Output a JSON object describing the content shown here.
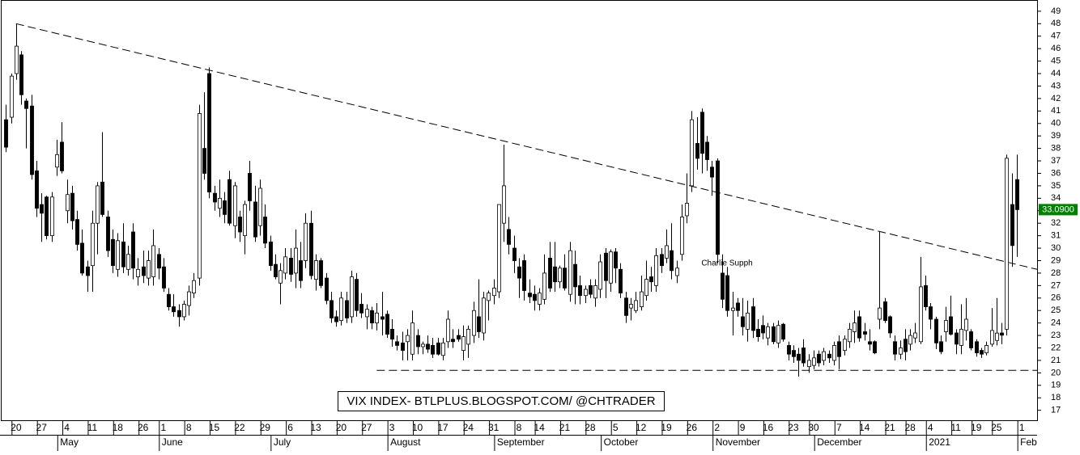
{
  "chart_data": {
    "type": "candlestick",
    "title": "VIX INDEX- BTLPLUS.BLOGSPOT.COM/ @CHTRADER",
    "annotation": "Charlie Supph",
    "last_price": {
      "value": 33.09,
      "label": "33.0900"
    },
    "up_color": "#ffffff",
    "down_color": "#000000",
    "annotation_color": "#e00000",
    "price_box_color": "#008000",
    "ylim": [
      16.2,
      49.9
    ],
    "yticks": [
      17,
      18,
      19,
      20,
      21,
      22,
      23,
      24,
      25,
      26,
      27,
      28,
      29,
      30,
      31,
      32,
      33,
      34,
      35,
      36,
      37,
      38,
      39,
      40,
      41,
      42,
      43,
      44,
      45,
      46,
      47,
      48,
      49
    ],
    "xlim": [
      -1,
      203
    ],
    "xticks": [
      {
        "value": 2,
        "label": "20"
      },
      {
        "value": 7,
        "label": "27"
      },
      {
        "value": 12,
        "label": "4"
      },
      {
        "value": 17,
        "label": "11"
      },
      {
        "value": 22,
        "label": "18"
      },
      {
        "value": 27,
        "label": "26"
      },
      {
        "value": 31,
        "label": "1"
      },
      {
        "value": 36,
        "label": "8"
      },
      {
        "value": 41,
        "label": "15"
      },
      {
        "value": 46,
        "label": "22"
      },
      {
        "value": 51,
        "label": "29"
      },
      {
        "value": 56,
        "label": "6"
      },
      {
        "value": 61,
        "label": "13"
      },
      {
        "value": 66,
        "label": "20"
      },
      {
        "value": 71,
        "label": "27"
      },
      {
        "value": 76,
        "label": "3"
      },
      {
        "value": 81,
        "label": "10"
      },
      {
        "value": 86,
        "label": "17"
      },
      {
        "value": 91,
        "label": "24"
      },
      {
        "value": 96,
        "label": "31"
      },
      {
        "value": 101,
        "label": "8"
      },
      {
        "value": 105,
        "label": "14"
      },
      {
        "value": 110,
        "label": "21"
      },
      {
        "value": 115,
        "label": "28"
      },
      {
        "value": 120,
        "label": "5"
      },
      {
        "value": 125,
        "label": "12"
      },
      {
        "value": 130,
        "label": "19"
      },
      {
        "value": 135,
        "label": "26"
      },
      {
        "value": 140,
        "label": "2"
      },
      {
        "value": 145,
        "label": "9"
      },
      {
        "value": 150,
        "label": "16"
      },
      {
        "value": 155,
        "label": "23"
      },
      {
        "value": 159,
        "label": "30"
      },
      {
        "value": 164,
        "label": "7"
      },
      {
        "value": 169,
        "label": "14"
      },
      {
        "value": 174,
        "label": "21"
      },
      {
        "value": 178,
        "label": "28"
      },
      {
        "value": 182,
        "label": "4"
      },
      {
        "value": 187,
        "label": "11"
      },
      {
        "value": 191,
        "label": "19"
      },
      {
        "value": 195,
        "label": "25"
      },
      {
        "value": 200,
        "label": "1"
      }
    ],
    "month_ticks": [
      {
        "value": 11,
        "label": "May"
      },
      {
        "value": 31,
        "label": "June"
      },
      {
        "value": 53,
        "label": "July"
      },
      {
        "value": 76,
        "label": "August"
      },
      {
        "value": 97,
        "label": "September"
      },
      {
        "value": 118,
        "label": "October"
      },
      {
        "value": 140,
        "label": "November"
      },
      {
        "value": 160,
        "label": "December"
      },
      {
        "value": 182,
        "label": "2021"
      },
      {
        "value": 200,
        "label": "Feb"
      }
    ],
    "trendlines": [
      {
        "x": [
          2,
          203
        ],
        "y": [
          48,
          28.3
        ]
      },
      {
        "x": [
          73,
          203
        ],
        "y": [
          20.2,
          20.2
        ]
      }
    ],
    "ohlc": [
      [
        40.3,
        41.5,
        37.7,
        38.1
      ],
      [
        40.5,
        44,
        40,
        43.8
      ],
      [
        44,
        48,
        43.5,
        46.2
      ],
      [
        45.5,
        45.8,
        41.5,
        42.3
      ],
      [
        41.8,
        42,
        38,
        41.2
      ],
      [
        41.4,
        42.3,
        35.5,
        35.9
      ],
      [
        36.2,
        37,
        32.5,
        33.2
      ],
      [
        33.5,
        34.4,
        30.5,
        32.8
      ],
      [
        34.1,
        34.2,
        30.7,
        31
      ],
      [
        31,
        34.5,
        30.5,
        34.1
      ],
      [
        36.5,
        38.7,
        35.8,
        37.5
      ],
      [
        38.5,
        40.1,
        36,
        36.2
      ],
      [
        33,
        35.5,
        32,
        34.3
      ],
      [
        34.4,
        35,
        31.5,
        32.2
      ],
      [
        32.3,
        33,
        29.8,
        30.3
      ],
      [
        30.4,
        31.5,
        27.8,
        28
      ],
      [
        28.5,
        29,
        26.5,
        27.8
      ],
      [
        28.6,
        33,
        26.5,
        32
      ],
      [
        32,
        35.3,
        29.5,
        35
      ],
      [
        35.3,
        39.3,
        32.5,
        32.7
      ],
      [
        32.5,
        33,
        29.3,
        29.8
      ],
      [
        30.7,
        31.5,
        28,
        28.6
      ],
      [
        28.3,
        31.2,
        27.7,
        30.6
      ],
      [
        30.5,
        32,
        28,
        28.5
      ],
      [
        28.3,
        30.2,
        27.8,
        29.5
      ],
      [
        31.3,
        32,
        27.5,
        28.4
      ],
      [
        27.7,
        29.2,
        27,
        28.3
      ],
      [
        28.5,
        29.8,
        27.2,
        27.8
      ],
      [
        27.6,
        29.8,
        27,
        29
      ],
      [
        27.7,
        31.5,
        27,
        30.2
      ],
      [
        29.5,
        30,
        27.5,
        28.4
      ],
      [
        28.5,
        29.2,
        26.5,
        26.8
      ],
      [
        26.3,
        26.8,
        25,
        25.3
      ],
      [
        25.3,
        26.3,
        24.5,
        24.9
      ],
      [
        25,
        25.5,
        23.7,
        24.5
      ],
      [
        24.5,
        25.8,
        24.2,
        25.5
      ],
      [
        25.4,
        27,
        24.6,
        26.5
      ],
      [
        26.4,
        28,
        26,
        27.4
      ],
      [
        27.6,
        41.5,
        27,
        40.8
      ],
      [
        38,
        42.5,
        35.5,
        36
      ],
      [
        44,
        44.5,
        34,
        34.5
      ],
      [
        34.4,
        35,
        33,
        33.7
      ],
      [
        33.2,
        35.5,
        32.5,
        34
      ],
      [
        33.8,
        34.5,
        32,
        32.7
      ],
      [
        35.5,
        36.2,
        31.8,
        32
      ],
      [
        31.8,
        35.3,
        30.8,
        35
      ],
      [
        32.5,
        33,
        30.5,
        31.3
      ],
      [
        31,
        33.8,
        29.5,
        33.5
      ],
      [
        36,
        37,
        33,
        33.8
      ],
      [
        33.7,
        35,
        30.5,
        30.9
      ],
      [
        31.8,
        35.5,
        31,
        34.8
      ],
      [
        32.5,
        33.5,
        30,
        30.4
      ],
      [
        30.5,
        31,
        28.2,
        28.6
      ],
      [
        28.7,
        29.5,
        27.5,
        27.7
      ],
      [
        27.2,
        28.8,
        25.5,
        28.2
      ],
      [
        28,
        30,
        27.5,
        29.3
      ],
      [
        29.2,
        30,
        27.3,
        27.9
      ],
      [
        28,
        31.5,
        26.8,
        30
      ],
      [
        29,
        30.5,
        26.8,
        27.4
      ],
      [
        29,
        32.8,
        28.4,
        32
      ],
      [
        32,
        33,
        27.5,
        27.8
      ],
      [
        27.5,
        29.5,
        26.6,
        29
      ],
      [
        29,
        29.2,
        26.8,
        27
      ],
      [
        27.6,
        28,
        25.5,
        25.8
      ],
      [
        25.8,
        26.5,
        24,
        24.4
      ],
      [
        24.5,
        25,
        23.7,
        24.1
      ],
      [
        24.2,
        26.5,
        23.8,
        26
      ],
      [
        25.8,
        26.5,
        24,
        24.4
      ],
      [
        24.5,
        28.2,
        24,
        27.7
      ],
      [
        27.5,
        28,
        24.5,
        25
      ],
      [
        25.5,
        26.4,
        24.4,
        24.8
      ],
      [
        24.5,
        25.5,
        23.5,
        25.1
      ],
      [
        25,
        25.3,
        23.5,
        24
      ],
      [
        24,
        25.6,
        23.4,
        24.8
      ],
      [
        24.5,
        26.5,
        23,
        24.3
      ],
      [
        24.7,
        25,
        22.8,
        23.1
      ],
      [
        23.5,
        24.3,
        22.1,
        22.7
      ],
      [
        22.5,
        23,
        21.8,
        22.2
      ],
      [
        22.4,
        23.3,
        21,
        21.8
      ],
      [
        22.5,
        23.5,
        21,
        23
      ],
      [
        21.5,
        25,
        21,
        24
      ],
      [
        23,
        23.5,
        21.5,
        22.1
      ],
      [
        22.1,
        22.5,
        21.5,
        22.3
      ],
      [
        22.3,
        23,
        21.6,
        21.9
      ],
      [
        22.2,
        22.8,
        21.2,
        21.5
      ],
      [
        22.4,
        22.8,
        21.4,
        21.5
      ],
      [
        21.4,
        22.8,
        21,
        22.4
      ],
      [
        22.5,
        25,
        22,
        24.3
      ],
      [
        22.7,
        23.5,
        22,
        22.5
      ],
      [
        23,
        23.5,
        22.5,
        22.7
      ],
      [
        21.8,
        23.8,
        21,
        22.9
      ],
      [
        22.3,
        23.8,
        21.2,
        23.5
      ],
      [
        23,
        25.7,
        22.4,
        25
      ],
      [
        24.5,
        27.5,
        22.8,
        23.3
      ],
      [
        23.2,
        26.5,
        22.6,
        26
      ],
      [
        25.8,
        26.6,
        24.2,
        26.4
      ],
      [
        26.2,
        27.5,
        25.5,
        26.8
      ],
      [
        26.5,
        33.5,
        26,
        33.5
      ],
      [
        32,
        38.3,
        30.5,
        35
      ],
      [
        31.5,
        32.5,
        29.5,
        30.3
      ],
      [
        30,
        31,
        28,
        29
      ],
      [
        28.5,
        29.2,
        26,
        27.6
      ],
      [
        29,
        29.5,
        25.8,
        26.6
      ],
      [
        26.4,
        27.5,
        25.6,
        26.1
      ],
      [
        26.3,
        27,
        25,
        25.8
      ],
      [
        25.5,
        26.8,
        25,
        26.4
      ],
      [
        25.9,
        29.5,
        25.5,
        28
      ],
      [
        29.2,
        30.5,
        26.5,
        26.8
      ],
      [
        28.5,
        30.5,
        26.5,
        27.3
      ],
      [
        27.3,
        28.6,
        26.8,
        28.4
      ],
      [
        28.4,
        29.5,
        26.6,
        26.8
      ],
      [
        26.3,
        30.5,
        25.7,
        29.8
      ],
      [
        28.7,
        29.8,
        25.5,
        26.9
      ],
      [
        27,
        27.8,
        25.5,
        26.2
      ],
      [
        26.2,
        27,
        25.6,
        26.7
      ],
      [
        27,
        27.5,
        26,
        26.3
      ],
      [
        26,
        27.5,
        25.3,
        27
      ],
      [
        26.7,
        29.5,
        26,
        28.9
      ],
      [
        29.6,
        30,
        26,
        27.4
      ],
      [
        27.2,
        29.9,
        26.5,
        29.7
      ],
      [
        29.7,
        30,
        27.2,
        28.4
      ],
      [
        28.3,
        28.8,
        26,
        26.4
      ],
      [
        26,
        26.5,
        24,
        24.6
      ],
      [
        25.2,
        26,
        24.2,
        25.5
      ],
      [
        25,
        26.5,
        24.8,
        25.8
      ],
      [
        25.3,
        27.8,
        25,
        26.5
      ],
      [
        26.2,
        29,
        25.8,
        27.5
      ],
      [
        27.7,
        28.5,
        26.5,
        27.3
      ],
      [
        27,
        30,
        26.5,
        29.4
      ],
      [
        29.5,
        30,
        28,
        28.6
      ],
      [
        29.2,
        31.5,
        28.8,
        30.2
      ],
      [
        29.8,
        32,
        27.5,
        28.2
      ],
      [
        27.8,
        29,
        27.2,
        28.4
      ],
      [
        29.5,
        33.5,
        29,
        32.5
      ],
      [
        32.6,
        36,
        32,
        33.6
      ],
      [
        35,
        41,
        34.5,
        40.3
      ],
      [
        38.4,
        40.5,
        36.3,
        37.2
      ],
      [
        40.9,
        41.2,
        36,
        37.6
      ],
      [
        38.5,
        39,
        36.2,
        37.1
      ],
      [
        36.5,
        37,
        34.2,
        35.7
      ],
      [
        37,
        37.2,
        28.8,
        29.5
      ],
      [
        28,
        29.5,
        25.2,
        25.9
      ],
      [
        27.8,
        28.5,
        24.5,
        25
      ],
      [
        25,
        26.5,
        23,
        25.2
      ],
      [
        25.6,
        26,
        24.5,
        25
      ],
      [
        24.5,
        26,
        23,
        23.7
      ],
      [
        23.5,
        25.8,
        22.5,
        24.8
      ],
      [
        25.3,
        26,
        22.8,
        23.4
      ],
      [
        23.5,
        24.3,
        22.5,
        22.9
      ],
      [
        23.8,
        24.6,
        22.7,
        23.2
      ],
      [
        22.8,
        24,
        22.2,
        23.7
      ],
      [
        23.7,
        24,
        22.3,
        22.5
      ],
      [
        22.4,
        24.2,
        22,
        23.8
      ],
      [
        23.9,
        24,
        22.5,
        22.7
      ],
      [
        22.2,
        22.5,
        21,
        21.5
      ],
      [
        21.8,
        22.2,
        20.8,
        21.3
      ],
      [
        21.5,
        22,
        19.7,
        21
      ],
      [
        22,
        22.7,
        20.5,
        20.8
      ],
      [
        20.5,
        21.5,
        20,
        21
      ],
      [
        20.6,
        21.8,
        20.3,
        21.2
      ],
      [
        21.5,
        21.8,
        20.5,
        20.8
      ],
      [
        21,
        22,
        20.6,
        21.7
      ],
      [
        21.5,
        21.8,
        20.8,
        21.2
      ],
      [
        21,
        22.5,
        20.6,
        22.2
      ],
      [
        22.5,
        23,
        20.3,
        21.3
      ],
      [
        21.8,
        23,
        21.4,
        22.7
      ],
      [
        22.5,
        24,
        22,
        23.5
      ],
      [
        23.3,
        25,
        22.4,
        24
      ],
      [
        24.5,
        25,
        22.5,
        22.8
      ],
      [
        23.3,
        24,
        22.6,
        23.1
      ],
      [
        22.5,
        23.5,
        21.8,
        22.3
      ],
      [
        22.5,
        22.6,
        21.5,
        21.6
      ],
      [
        24.3,
        31.3,
        23.5,
        25.2
      ],
      [
        25.7,
        26,
        24,
        24.2
      ],
      [
        24.5,
        24.6,
        22.8,
        23.2
      ],
      [
        22.5,
        23,
        21,
        21.5
      ],
      [
        21.5,
        22.6,
        21.1,
        22
      ],
      [
        22.7,
        23.5,
        21,
        21.7
      ],
      [
        22.3,
        23.5,
        21.8,
        23
      ],
      [
        22.8,
        24,
        22.4,
        23.2
      ],
      [
        22.5,
        29.3,
        22.3,
        26.9
      ],
      [
        27,
        27.8,
        25,
        25.3
      ],
      [
        25.3,
        25.6,
        23.5,
        24.3
      ],
      [
        24.3,
        24.5,
        21.9,
        22.4
      ],
      [
        22.5,
        23,
        21.5,
        21.7
      ],
      [
        23.3,
        25.3,
        22.5,
        24.2
      ],
      [
        24.5,
        26.2,
        23,
        23.1
      ],
      [
        23.2,
        23.5,
        21.5,
        22.3
      ],
      [
        22.2,
        25.5,
        21.5,
        23.5
      ],
      [
        23.4,
        26,
        22.6,
        24.3
      ],
      [
        23.3,
        23.5,
        21.8,
        22
      ],
      [
        22.5,
        22.7,
        21.3,
        21.6
      ],
      [
        21.8,
        22,
        21.2,
        21.5
      ],
      [
        21.6,
        22.5,
        21.4,
        22.2
      ],
      [
        22.3,
        25.2,
        22.1,
        23.4
      ],
      [
        22.6,
        26,
        22.2,
        23.19
      ],
      [
        23.2,
        24,
        22.3,
        23.02
      ],
      [
        23.5,
        37.5,
        23,
        37.21
      ],
      [
        33.5,
        36,
        28.5,
        30.21
      ],
      [
        35.5,
        37.5,
        29.3,
        33.09
      ]
    ]
  }
}
